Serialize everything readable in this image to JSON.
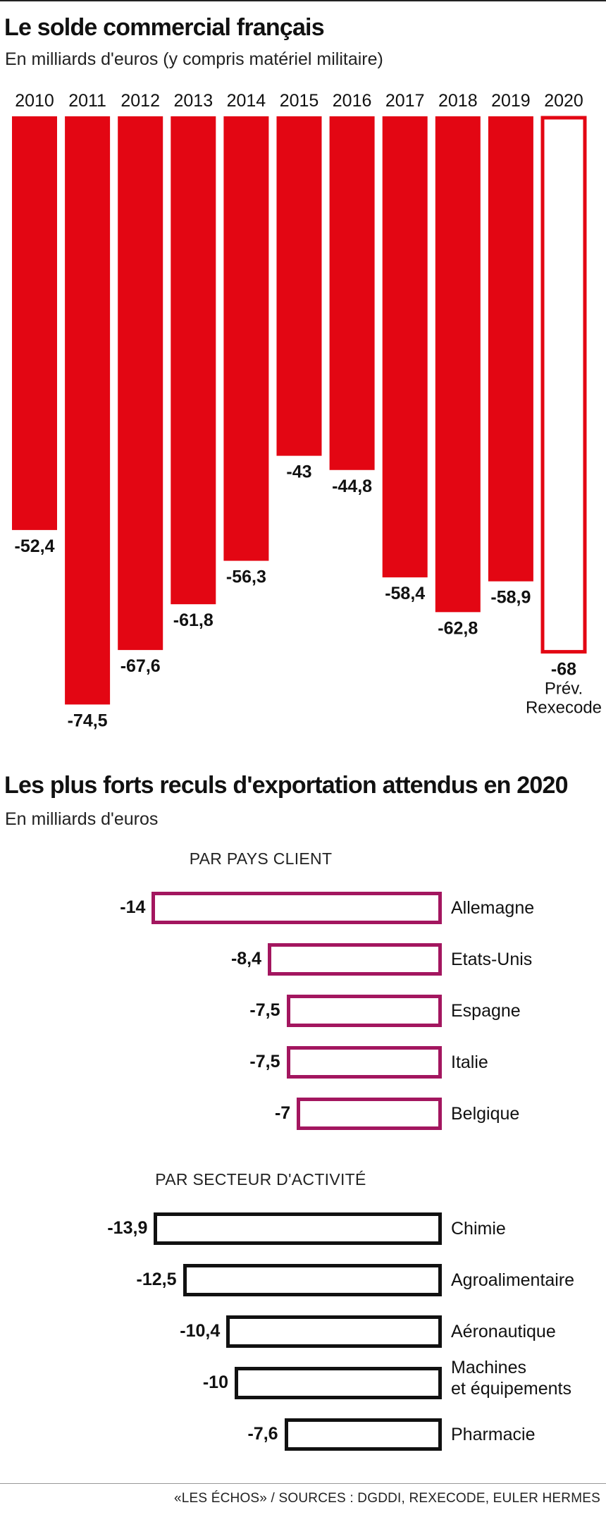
{
  "chart1": {
    "title": "Le solde commercial français",
    "subtitle": "En milliards d'euros (y compris matériel militaire)",
    "chart_data": {
      "type": "bar",
      "title": "Le solde commercial français",
      "subtitle": "En milliards d'euros (y compris matériel militaire)",
      "categories": [
        "2010",
        "2011",
        "2012",
        "2013",
        "2014",
        "2015",
        "2016",
        "2017",
        "2018",
        "2019",
        "2020"
      ],
      "values": [
        -52.4,
        -74.5,
        -67.6,
        -61.8,
        -56.3,
        -43,
        -44.8,
        -58.4,
        -62.8,
        -58.9,
        -68
      ],
      "value_labels": [
        "-52,4",
        "-74,5",
        "-67,6",
        "-61,8",
        "-56,3",
        "-43",
        "-44,8",
        "-58,4",
        "-62,8",
        "-58,9",
        "-68"
      ],
      "forecast": {
        "category": "2020",
        "note_lines": [
          "Prév.",
          "Rexecode"
        ]
      },
      "ylim": [
        -80,
        0
      ],
      "xlabel": "",
      "ylabel": "",
      "colors": {
        "bar": "#e30613",
        "forecast_outline": "#e30613"
      }
    }
  },
  "chart2": {
    "title": "Les plus forts reculs d'exportation attendus en 2020",
    "subtitle": "En milliards d'euros",
    "chart_data": [
      {
        "type": "bar",
        "orientation": "horizontal",
        "title": "PAR PAYS CLIENT",
        "categories": [
          "Allemagne",
          "Etats-Unis",
          "Espagne",
          "Italie",
          "Belgique"
        ],
        "values": [
          -14,
          -8.4,
          -7.5,
          -7.5,
          -7
        ],
        "value_labels": [
          "-14",
          "-8,4",
          "-7,5",
          "-7,5",
          "-7"
        ],
        "xlim": [
          -14,
          0
        ],
        "color": "#a3165f"
      },
      {
        "type": "bar",
        "orientation": "horizontal",
        "title": "PAR SECTEUR D'ACTIVITÉ",
        "categories": [
          "Chimie",
          "Agroalimentaire",
          "Aéronautique",
          "Machines|et équipements",
          "Pharmacie"
        ],
        "values": [
          -13.9,
          -12.5,
          -10.4,
          -10,
          -7.6
        ],
        "value_labels": [
          "-13,9",
          "-12,5",
          "-10,4",
          "-10",
          "-7,6"
        ],
        "xlim": [
          -14,
          0
        ],
        "color": "#111111"
      }
    ]
  },
  "source": "«LES ÉCHOS» / SOURCES : DGDDI, REXECODE, EULER HERMES"
}
